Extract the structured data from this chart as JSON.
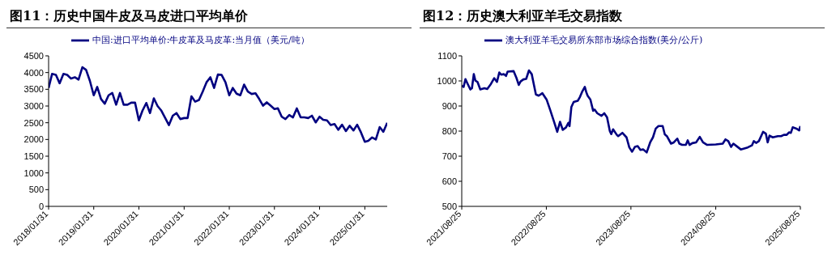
{
  "chart_data": [
    {
      "type": "line",
      "title": "图11：历史中国牛皮及马皮进口平均单价",
      "legend": "top left",
      "xlim": [
        "2018-01-31",
        "2025-07-31"
      ],
      "ylim": [
        0,
        4500
      ],
      "yticks": [
        0,
        500,
        1000,
        1500,
        2000,
        2500,
        3000,
        3500,
        4000,
        4500
      ],
      "xticks": [
        {
          "value": "2018-01-31",
          "label": "2018/01/31"
        },
        {
          "value": "2019-01-31",
          "label": "2019/01/31"
        },
        {
          "value": "2020-01-31",
          "label": "2020/01/31"
        },
        {
          "value": "2021-01-31",
          "label": "2021/01/31"
        },
        {
          "value": "2022-01-31",
          "label": "2022/01/31"
        },
        {
          "value": "2023-01-31",
          "label": "2023/01/31"
        },
        {
          "value": "2024-01-31",
          "label": "2024/01/31"
        },
        {
          "value": "2025-01-31",
          "label": "2025/01/31"
        }
      ],
      "x": [
        "2018-01-31",
        "2018-02-28",
        "2018-03-31",
        "2018-04-30",
        "2018-05-31",
        "2018-06-30",
        "2018-07-31",
        "2018-08-31",
        "2018-09-30",
        "2018-10-31",
        "2018-11-30",
        "2018-12-31",
        "2019-01-31",
        "2019-02-28",
        "2019-03-31",
        "2019-04-30",
        "2019-05-31",
        "2019-06-30",
        "2019-07-31",
        "2019-08-31",
        "2019-09-30",
        "2019-10-31",
        "2019-11-30",
        "2019-12-31",
        "2020-01-31",
        "2020-02-29",
        "2020-03-31",
        "2020-04-30",
        "2020-05-31",
        "2020-06-30",
        "2020-07-31",
        "2020-08-31",
        "2020-09-30",
        "2020-10-31",
        "2020-11-30",
        "2020-12-31",
        "2021-01-31",
        "2021-02-28",
        "2021-03-31",
        "2021-04-30",
        "2021-05-31",
        "2021-06-30",
        "2021-07-31",
        "2021-08-31",
        "2021-09-30",
        "2021-10-31",
        "2021-11-30",
        "2021-12-31",
        "2022-01-31",
        "2022-02-28",
        "2022-03-31",
        "2022-04-30",
        "2022-05-31",
        "2022-06-30",
        "2022-07-31",
        "2022-08-31",
        "2022-09-30",
        "2022-10-31",
        "2022-11-30",
        "2022-12-31",
        "2023-01-31",
        "2023-02-28",
        "2023-03-31",
        "2023-04-30",
        "2023-05-31",
        "2023-06-30",
        "2023-07-31",
        "2023-08-31",
        "2023-09-30",
        "2023-10-31",
        "2023-11-30",
        "2023-12-31",
        "2024-01-31",
        "2024-02-29",
        "2024-03-31",
        "2024-04-30",
        "2024-05-31",
        "2024-06-30",
        "2024-07-31",
        "2024-08-31",
        "2024-09-30",
        "2024-10-31",
        "2024-11-30",
        "2024-12-31",
        "2025-01-31",
        "2025-02-28",
        "2025-03-31",
        "2025-04-30",
        "2025-05-31",
        "2025-06-30",
        "2025-07-31"
      ],
      "series": [
        {
          "name": "中国:进口平均单价:牛皮革及马皮革:当月值（美元/吨）",
          "color": "#000080",
          "values": [
            3540,
            3960,
            3930,
            3680,
            3960,
            3930,
            3820,
            3860,
            3790,
            4160,
            4080,
            3750,
            3320,
            3570,
            3210,
            3070,
            3320,
            3390,
            3040,
            3390,
            3040,
            3040,
            3100,
            3100,
            2570,
            2860,
            3090,
            2790,
            3230,
            3000,
            2860,
            2640,
            2430,
            2710,
            2790,
            2610,
            2640,
            2640,
            3290,
            3130,
            3180,
            3430,
            3710,
            3860,
            3540,
            3940,
            3930,
            3710,
            3320,
            3540,
            3370,
            3320,
            3640,
            3430,
            3360,
            3380,
            3210,
            3010,
            3110,
            3010,
            2910,
            2930,
            2680,
            2610,
            2730,
            2660,
            2930,
            2660,
            2660,
            2640,
            2710,
            2510,
            2680,
            2590,
            2570,
            2430,
            2460,
            2290,
            2440,
            2250,
            2410,
            2270,
            2440,
            2210,
            1930,
            1960,
            2060,
            2000,
            2370,
            2230,
            2500
          ]
        }
      ]
    },
    {
      "type": "line",
      "title": "图12：历史澳大利亚羊毛交易指数",
      "legend": "top left",
      "xlim": [
        "2021-08-25",
        "2025-08-25"
      ],
      "ylim": [
        500,
        1100
      ],
      "yticks": [
        500,
        600,
        700,
        800,
        900,
        1000,
        1100
      ],
      "xticks": [
        {
          "value": "2021-08-25",
          "label": "2021/08/25"
        },
        {
          "value": "2022-08-25",
          "label": "2022/08/25"
        },
        {
          "value": "2023-08-25",
          "label": "2023/08/25"
        },
        {
          "value": "2024-08-25",
          "label": "2024/08/25"
        },
        {
          "value": "2025-08-25",
          "label": "2025/08/25"
        }
      ],
      "x": [
        "2021-08-25",
        "2021-09-02",
        "2021-09-10",
        "2021-09-18",
        "2021-10-01",
        "2021-10-08",
        "2021-10-16",
        "2021-10-23",
        "2021-11-01",
        "2021-11-13",
        "2021-12-01",
        "2021-12-13",
        "2021-12-29",
        "2022-01-12",
        "2022-01-24",
        "2022-02-03",
        "2022-02-11",
        "2022-02-23",
        "2022-03-04",
        "2022-03-11",
        "2022-04-06",
        "2022-04-18",
        "2022-04-28",
        "2022-05-06",
        "2022-05-18",
        "2022-05-30",
        "2022-06-11",
        "2022-06-23",
        "2022-07-02",
        "2022-07-11",
        "2022-07-23",
        "2022-08-08",
        "2022-08-26",
        "2022-09-10",
        "2022-09-28",
        "2022-10-11",
        "2022-10-23",
        "2022-11-04",
        "2022-11-18",
        "2022-11-28",
        "2022-12-03",
        "2022-12-11",
        "2022-12-21",
        "2023-01-08",
        "2023-01-17",
        "2023-01-26",
        "2023-02-07",
        "2023-02-13",
        "2023-02-19",
        "2023-03-03",
        "2023-03-15",
        "2023-03-21",
        "2023-04-02",
        "2023-04-20",
        "2023-05-02",
        "2023-05-14",
        "2023-05-26",
        "2023-06-01",
        "2023-06-09",
        "2023-06-25",
        "2023-07-01",
        "2023-07-19",
        "2023-08-06",
        "2023-08-18",
        "2023-08-30",
        "2023-09-11",
        "2023-09-23",
        "2023-10-05",
        "2023-10-17",
        "2023-11-01",
        "2023-11-16",
        "2023-11-28",
        "2023-12-10",
        "2023-12-22",
        "2024-01-09",
        "2024-01-18",
        "2024-01-27",
        "2024-02-14",
        "2024-02-26",
        "2024-03-12",
        "2024-03-21",
        "2024-04-02",
        "2024-04-18",
        "2024-04-26",
        "2024-05-04",
        "2024-05-16",
        "2024-06-01",
        "2024-06-17",
        "2024-07-01",
        "2024-07-19",
        "2024-08-25",
        "2024-09-24",
        "2024-10-06",
        "2024-10-18",
        "2024-10-30",
        "2024-11-09",
        "2024-11-23",
        "2024-12-11",
        "2025-01-10",
        "2025-01-28",
        "2025-02-05",
        "2025-02-15",
        "2025-02-27",
        "2025-03-17",
        "2025-03-29",
        "2025-04-06",
        "2025-04-14",
        "2025-04-28",
        "2025-05-20",
        "2025-06-03",
        "2025-06-15",
        "2025-06-27",
        "2025-07-07",
        "2025-07-15",
        "2025-07-23",
        "2025-08-08",
        "2025-08-20",
        "2025-08-25"
      ],
      "series": [
        {
          "name": "澳大利亚羊毛交易所东部市场综合指数(美分/公斤)",
          "color": "#000080",
          "values": [
            981,
            976,
            1007,
            991,
            966,
            971,
            1027,
            1001,
            996,
            966,
            971,
            968,
            988,
            1011,
            996,
            1034,
            1025,
            1027,
            1020,
            1037,
            1039,
            1012,
            984,
            998,
            1006,
            1008,
            1042,
            1027,
            986,
            946,
            941,
            951,
            926,
            886,
            835,
            797,
            837,
            805,
            815,
            833,
            820,
            896,
            916,
            921,
            936,
            956,
            976,
            956,
            941,
            926,
            881,
            886,
            871,
            861,
            871,
            855,
            800,
            788,
            807,
            785,
            780,
            793,
            775,
            735,
            718,
            737,
            740,
            725,
            727,
            715,
            755,
            775,
            810,
            820,
            820,
            787,
            780,
            750,
            755,
            770,
            750,
            745,
            745,
            763,
            745,
            752,
            755,
            777,
            755,
            745,
            747,
            750,
            767,
            760,
            737,
            750,
            740,
            727,
            735,
            743,
            760,
            753,
            760,
            797,
            790,
            755,
            782,
            775,
            780,
            780,
            785,
            785,
            795,
            793,
            815,
            810,
            803,
            820
          ]
        }
      ]
    }
  ]
}
